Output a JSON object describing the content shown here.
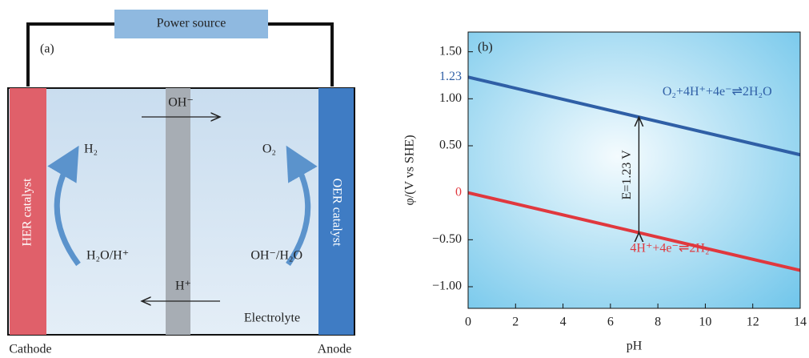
{
  "diagram": {
    "panel_label": "(a)",
    "power_source": "Power source",
    "cathode_catalyst": "HER catalyst",
    "anode_catalyst": "OER catalyst",
    "top_ion": "OH⁻",
    "bottom_ion": "H⁺",
    "cathode_product": "H₂",
    "cathode_reactant": "H₂O/H⁺",
    "anode_product": "O₂",
    "anode_reactant": "OH⁻/H₂O",
    "electrolyte": "Electrolyte",
    "cathode": "Cathode",
    "anode": "Anode"
  },
  "chart_data": {
    "type": "line",
    "panel_label": "(b)",
    "x_label": "pH",
    "y_label": "φ/(V vs SHE)",
    "x": [
      0,
      14
    ],
    "series": [
      {
        "name": "O₂+4H⁺+4e⁻⇌2H₂O",
        "color": "#2f5fa6",
        "values": [
          1.23,
          0.404
        ]
      },
      {
        "name": "4H⁺+4e⁻⇌2H₂",
        "color": "#e0383e",
        "values": [
          0,
          -0.826
        ]
      }
    ],
    "xlim": [
      0,
      14
    ],
    "xticks": [
      0,
      2,
      4,
      6,
      8,
      10,
      12,
      14
    ],
    "ylim": [
      -1.23,
      1.71
    ],
    "yticks": [
      {
        "value": 1.5,
        "label": "1.50"
      },
      {
        "value": 1,
        "label": "1.00"
      },
      {
        "value": 0.5,
        "label": "0.50"
      },
      {
        "value": -0.5,
        "label": "−0.50"
      },
      {
        "value": -1,
        "label": "−1.00"
      }
    ],
    "marked_values": [
      {
        "value": 1.23,
        "color": "#2f5fa6"
      },
      {
        "value": 0,
        "color": "#e0383e"
      }
    ],
    "annotation": {
      "text": "E=1.23 V",
      "x": 7.2,
      "from": -0.425,
      "to": 0.805
    }
  }
}
